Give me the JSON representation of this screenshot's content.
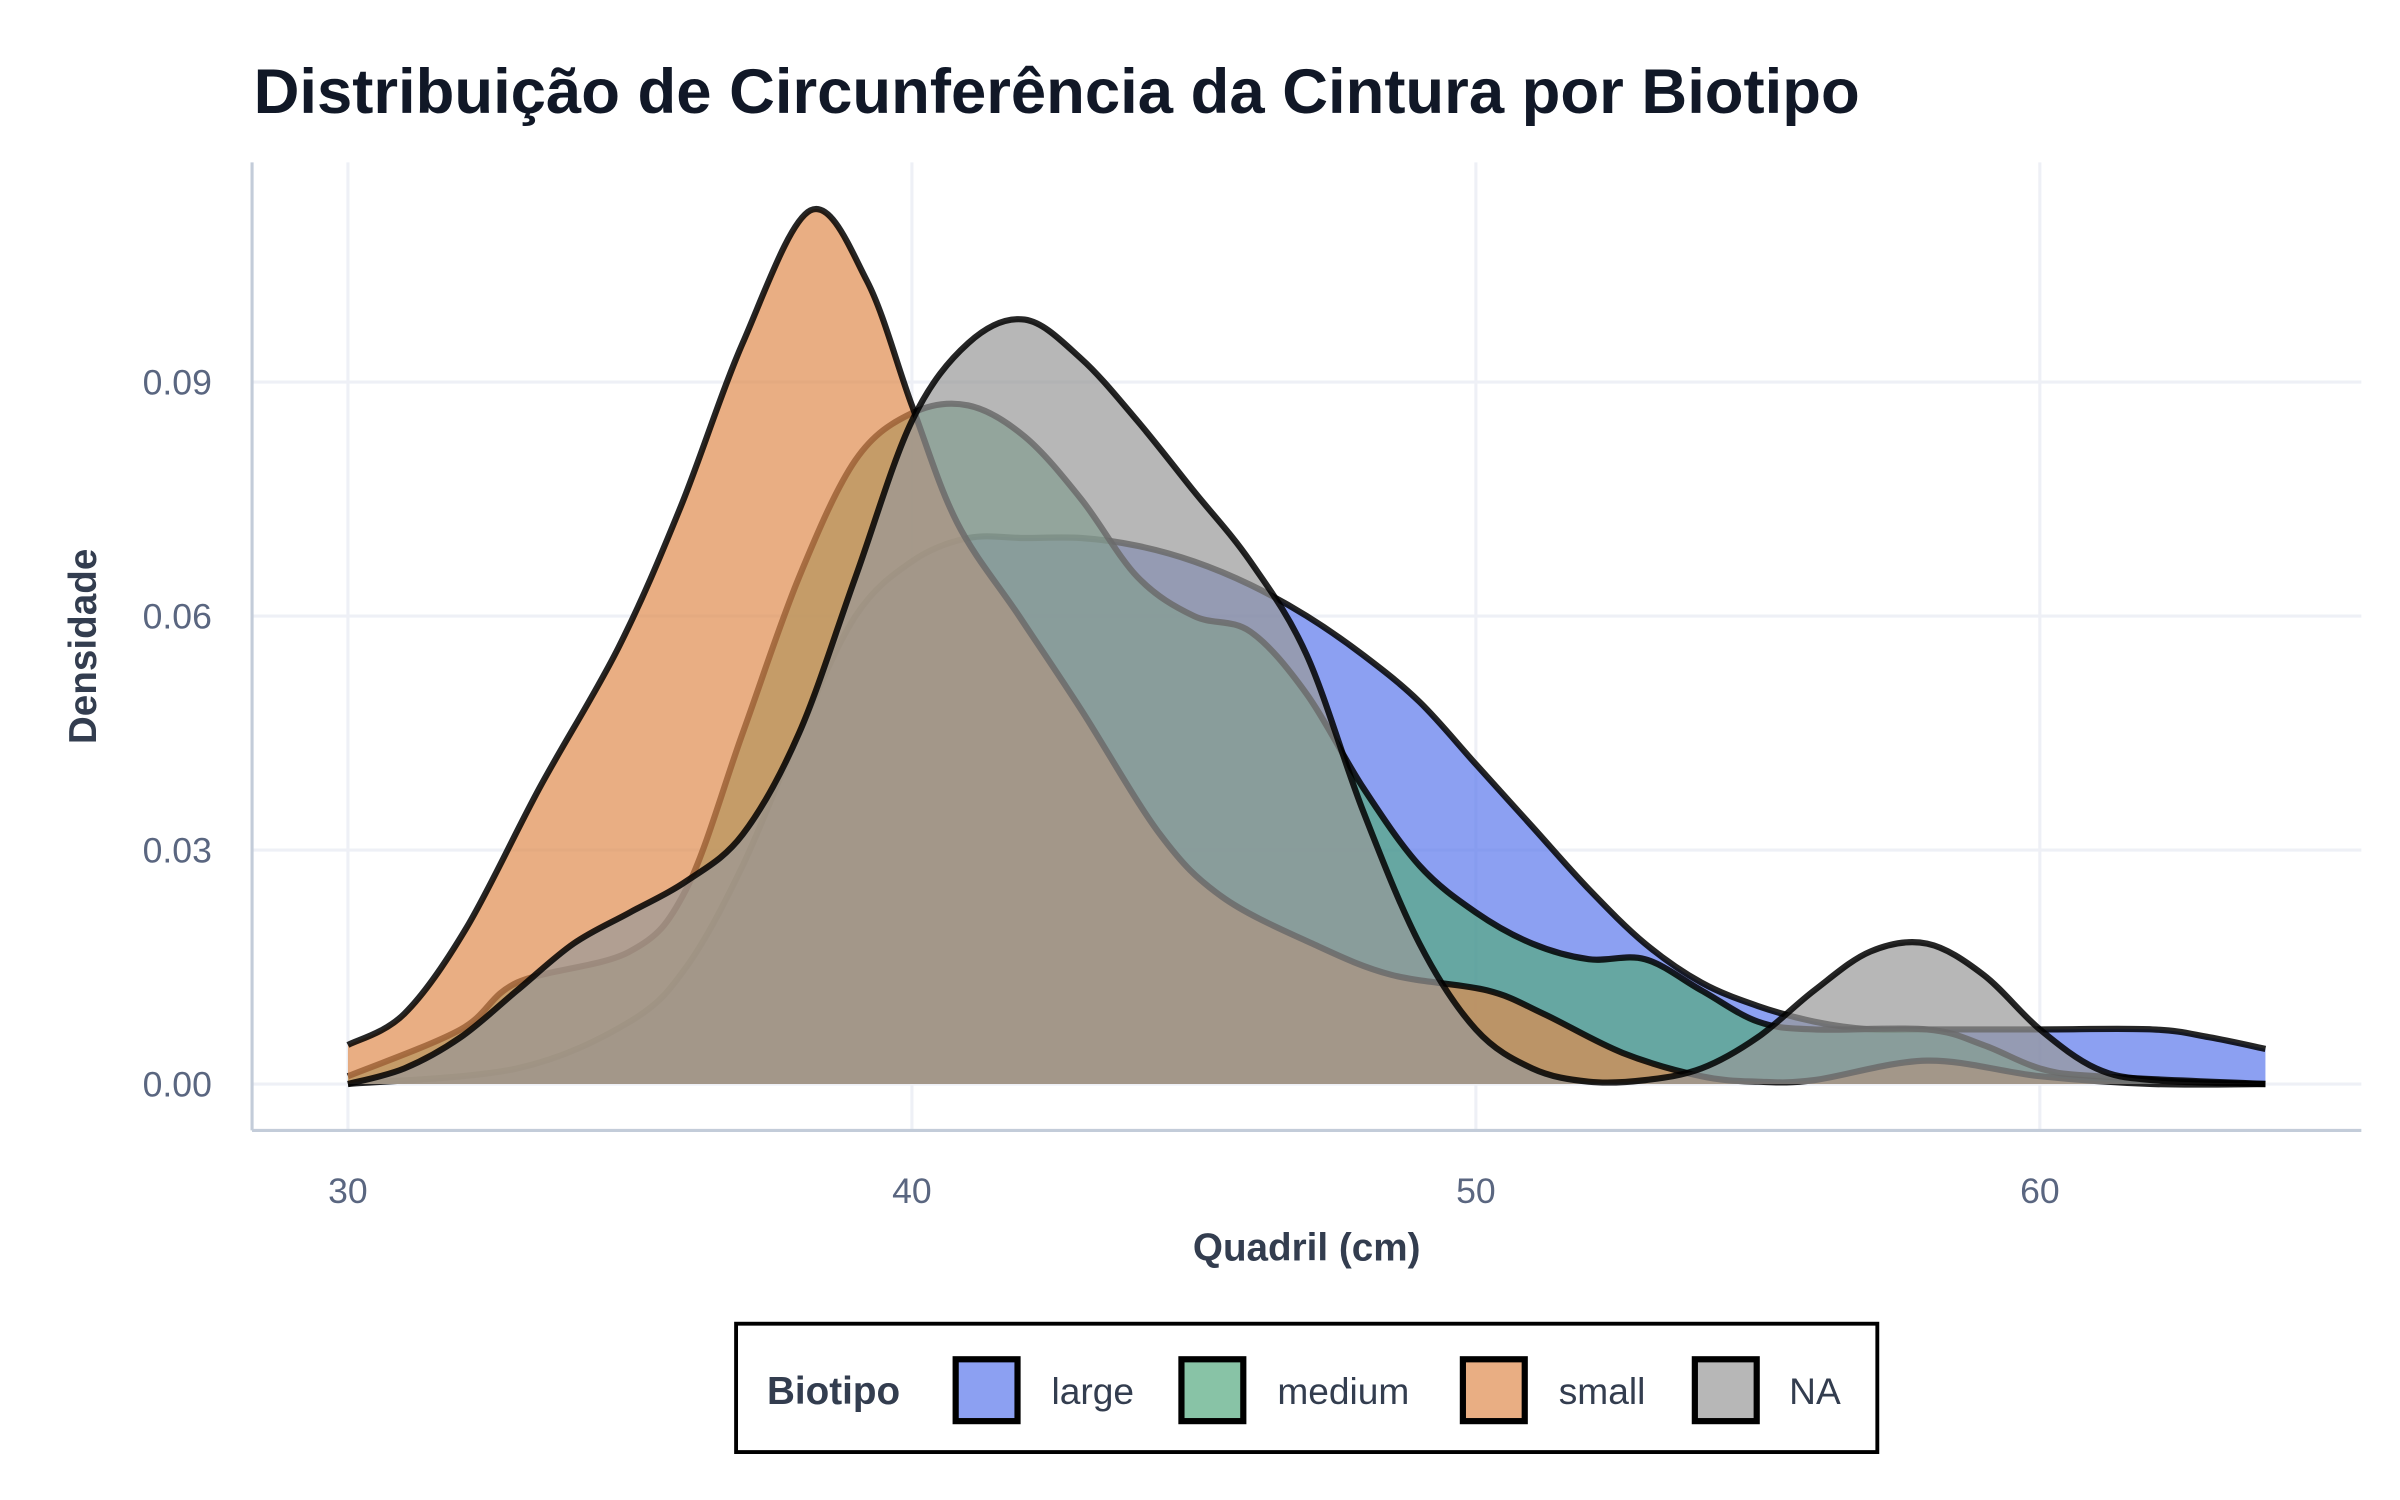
{
  "chart_data": {
    "type": "area",
    "title": "Distribuição de Circunferência da Cintura por Biotipo",
    "xlabel": "Quadril (cm)",
    "ylabel": "Densidade",
    "xlim": [
      28.3,
      65.7
    ],
    "ylim": [
      -0.0055,
      0.117
    ],
    "xticks": [
      30,
      40,
      50,
      60
    ],
    "xtick_labels": [
      "30",
      "40",
      "50",
      "60"
    ],
    "yticks": [
      0,
      0.03,
      0.06,
      0.09
    ],
    "ytick_labels": [
      "0.00",
      "0.03",
      "0.06",
      "0.09"
    ],
    "grid": true,
    "legend": {
      "title": "Biotipo",
      "position": "bottom"
    },
    "series": [
      {
        "name": "large",
        "color": "#5b77ec",
        "x": [
          30,
          33,
          35,
          36,
          37,
          38,
          39,
          40,
          41,
          42,
          43,
          44,
          45,
          46,
          47,
          48,
          49,
          50,
          51,
          52,
          53,
          54,
          55,
          56,
          57,
          58,
          60,
          62,
          63,
          64
        ],
        "y": [
          0,
          0.002,
          0.008,
          0.015,
          0.028,
          0.045,
          0.06,
          0.067,
          0.07,
          0.07,
          0.07,
          0.069,
          0.067,
          0.064,
          0.06,
          0.055,
          0.049,
          0.041,
          0.033,
          0.025,
          0.018,
          0.013,
          0.01,
          0.008,
          0.007,
          0.007,
          0.007,
          0.007,
          0.006,
          0.0045
        ]
      },
      {
        "name": "medium",
        "color": "#55aa80",
        "x": [
          30,
          32,
          33,
          35,
          36,
          37,
          38,
          39,
          40,
          41,
          42,
          43,
          44,
          45,
          46,
          47,
          48,
          49,
          50,
          51,
          52,
          53,
          54,
          55,
          56,
          58,
          59,
          60,
          61,
          64
        ],
        "y": [
          0.001,
          0.007,
          0.013,
          0.017,
          0.025,
          0.045,
          0.065,
          0.08,
          0.086,
          0.087,
          0.083,
          0.075,
          0.065,
          0.06,
          0.058,
          0.05,
          0.038,
          0.028,
          0.022,
          0.018,
          0.016,
          0.016,
          0.012,
          0.008,
          0.007,
          0.007,
          0.005,
          0.002,
          0.001,
          0
        ]
      },
      {
        "name": "small",
        "color": "#df8c4e",
        "x": [
          30,
          31,
          32.1,
          33.4,
          34.8,
          35.9,
          37,
          38.2,
          39.2,
          40,
          40.8,
          41.9,
          43,
          44.4,
          45.5,
          47.1,
          48.5,
          50.2,
          51.2,
          52.6,
          54,
          55,
          56,
          58,
          60,
          62,
          64
        ],
        "y": [
          0.005,
          0.009,
          0.02,
          0.038,
          0.056,
          0.074,
          0.095,
          0.112,
          0.103,
          0.087,
          0.072,
          0.06,
          0.048,
          0.032,
          0.024,
          0.018,
          0.014,
          0.012,
          0.009,
          0.004,
          0.001,
          0.0003,
          0.0005,
          0.003,
          0.001,
          0,
          0
        ]
      },
      {
        "name": "NA",
        "color": "#999999",
        "x": [
          30,
          31,
          32,
          33,
          34,
          35,
          36,
          37,
          38,
          39,
          40,
          41,
          42,
          43,
          44,
          45,
          46,
          47,
          48,
          49,
          50,
          51,
          52,
          53,
          54,
          55,
          56,
          57,
          58,
          59,
          60,
          61,
          62,
          64
        ],
        "y": [
          0,
          0.002,
          0.006,
          0.012,
          0.018,
          0.022,
          0.026,
          0.032,
          0.045,
          0.065,
          0.085,
          0.095,
          0.098,
          0.093,
          0.085,
          0.076,
          0.067,
          0.055,
          0.035,
          0.018,
          0.007,
          0.002,
          0.0003,
          0.0005,
          0.002,
          0.006,
          0.012,
          0.017,
          0.018,
          0.014,
          0.007,
          0.002,
          0.0005,
          0
        ]
      }
    ]
  }
}
